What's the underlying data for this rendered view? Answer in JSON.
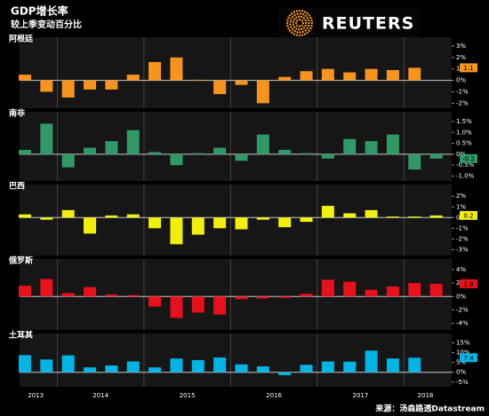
{
  "title": "GDP增长率",
  "subtitle": "较上季变动百分比",
  "logo": "REUTERS",
  "source": "来源：汤森路透Datastream",
  "chart_data": [
    {
      "type": "bar",
      "title": "阿根廷",
      "color": "#f7941d",
      "values": [
        0.5,
        -1.0,
        -1.5,
        -0.8,
        -0.8,
        0.5,
        1.6,
        2.0,
        0.05,
        -1.2,
        -0.4,
        -2.0,
        0.3,
        0.8,
        1.0,
        0.7,
        1.0,
        0.9,
        1.1,
        null
      ],
      "ylim": [
        -2.2,
        3.3
      ],
      "yticks": [
        {
          "value": 3,
          "label": "3%"
        },
        {
          "value": 2,
          "label": "2%"
        },
        {
          "value": 1,
          "label": "1%"
        },
        {
          "value": 0,
          "label": "0%"
        },
        {
          "value": -1,
          "label": "-1%"
        },
        {
          "value": -2,
          "label": "-2%"
        }
      ]
    },
    {
      "type": "bar",
      "title": "南非",
      "color": "#2f9a66",
      "values": [
        0.2,
        1.4,
        -0.6,
        0.3,
        0.6,
        1.1,
        0.1,
        -0.5,
        0.05,
        0.3,
        -0.3,
        0.9,
        0.2,
        0.05,
        -0.2,
        0.7,
        0.6,
        0.9,
        -0.7,
        -0.2
      ],
      "ylim": [
        -1.1,
        1.7
      ],
      "yticks": [
        {
          "value": 1.5,
          "label": "1.5%"
        },
        {
          "value": 1.0,
          "label": "1.0%"
        },
        {
          "value": 0.5,
          "label": "0.5%"
        },
        {
          "value": 0,
          "label": "0%"
        },
        {
          "value": -0.5,
          "label": "-0.5%"
        },
        {
          "value": -1.0,
          "label": "-1.0%"
        }
      ]
    },
    {
      "type": "bar",
      "title": "巴西",
      "color": "#f2ef0c",
      "values": [
        0.3,
        -0.2,
        0.7,
        -1.5,
        0.2,
        0.3,
        -1.0,
        -2.5,
        -1.6,
        -1.0,
        -1.1,
        -0.2,
        -0.9,
        -0.4,
        1.1,
        0.4,
        0.7,
        0.1,
        0.1,
        0.2
      ],
      "ylim": [
        -3.3,
        2.6
      ],
      "yticks": [
        {
          "value": 2,
          "label": "2%"
        },
        {
          "value": 1,
          "label": "1%"
        },
        {
          "value": 0,
          "label": "0%"
        },
        {
          "value": -1,
          "label": "-1%"
        },
        {
          "value": -2,
          "label": "-2%"
        },
        {
          "value": -3,
          "label": "-3%"
        }
      ]
    },
    {
      "type": "bar",
      "title": "俄罗斯",
      "color": "#e8101a",
      "values": [
        1.6,
        2.6,
        0.5,
        1.4,
        0.3,
        0.2,
        -1.5,
        -3.2,
        -2.4,
        -2.7,
        -0.4,
        -0.3,
        -0.2,
        0.4,
        2.5,
        2.2,
        1.0,
        1.5,
        2.0,
        1.9
      ],
      "ylim": [
        -4.6,
        4.8
      ],
      "yticks": [
        {
          "value": 4,
          "label": "4%"
        },
        {
          "value": 2,
          "label": "2%"
        },
        {
          "value": 0,
          "label": "0%"
        },
        {
          "value": -2,
          "label": "-2%"
        },
        {
          "value": -4,
          "label": "-4%"
        }
      ]
    },
    {
      "type": "bar",
      "title": "土耳其",
      "color": "#00b4e6",
      "categories": [
        "2013",
        null,
        "2014",
        null,
        null,
        null,
        "2015",
        null,
        null,
        null,
        "2016",
        null,
        null,
        null,
        "2017",
        null,
        null,
        null,
        "2018",
        null
      ],
      "values": [
        8.7,
        6.5,
        8.6,
        2.5,
        3.5,
        5.5,
        2.5,
        7.0,
        6.2,
        7.5,
        4.0,
        3.0,
        -1.5,
        3.8,
        5.5,
        5.4,
        11.0,
        7.0,
        7.4,
        null
      ],
      "ylim": [
        -6,
        17
      ],
      "yticks": [
        {
          "value": 15,
          "label": "15%"
        },
        {
          "value": 10,
          "label": "10%"
        },
        {
          "value": 5,
          "label": "5%"
        },
        {
          "value": 0,
          "label": "0%"
        },
        {
          "value": -5,
          "label": "-5%"
        }
      ]
    }
  ]
}
